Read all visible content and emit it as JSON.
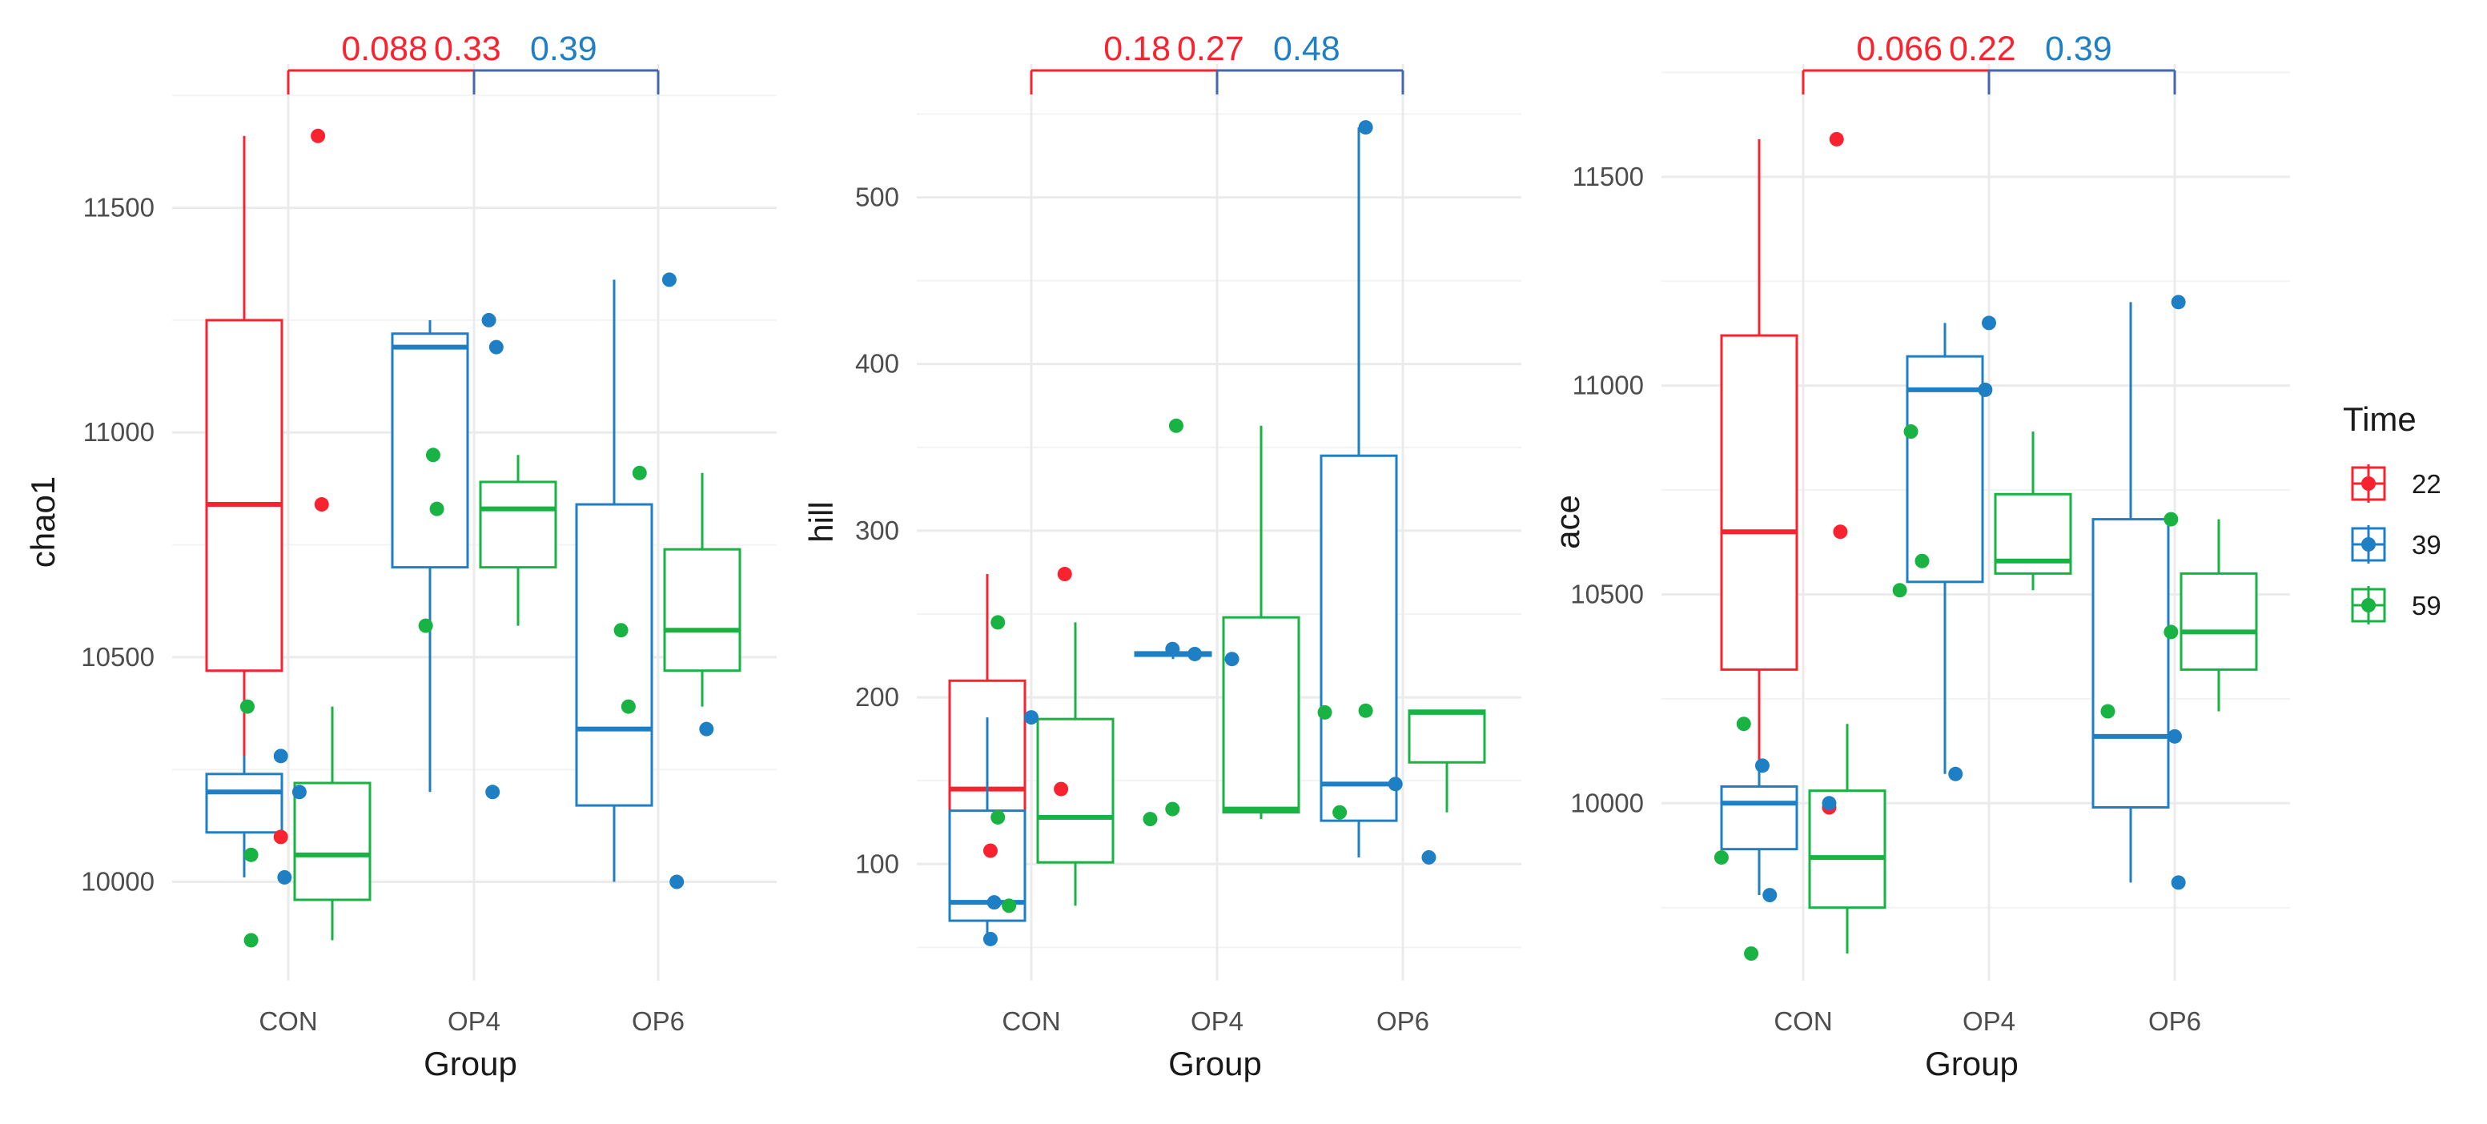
{
  "chart_data": [
    {
      "type": "boxplot",
      "ylabel": "chao1",
      "xlabel": "Group",
      "categories": [
        "CON",
        "OP4",
        "OP6"
      ],
      "ylim": [
        9780,
        11820
      ],
      "yticks": [
        10000,
        10500,
        11000,
        11500
      ],
      "boxes": [
        {
          "group": "CON",
          "time": "22",
          "min": 10100,
          "q1": 10470,
          "median": 10840,
          "q3": 11250,
          "max": 11660
        },
        {
          "group": "CON",
          "time": "39",
          "min": 10010,
          "q1": 10110,
          "median": 10200,
          "q3": 10240,
          "max": 10280
        },
        {
          "group": "CON",
          "time": "59",
          "min": 9870,
          "q1": 9960,
          "median": 10060,
          "q3": 10220,
          "max": 10390
        },
        {
          "group": "OP4",
          "time": "39",
          "min": 10200,
          "q1": 10700,
          "median": 11190,
          "q3": 11220,
          "max": 11250
        },
        {
          "group": "OP4",
          "time": "59",
          "min": 10570,
          "q1": 10700,
          "median": 10830,
          "q3": 10890,
          "max": 10950
        },
        {
          "group": "OP6",
          "time": "39",
          "min": 10000,
          "q1": 10170,
          "median": 10340,
          "q3": 10840,
          "max": 11340
        },
        {
          "group": "OP6",
          "time": "59",
          "min": 10390,
          "q1": 10470,
          "median": 10560,
          "q3": 10740,
          "max": 10910
        }
      ],
      "points": [
        {
          "group": "CON",
          "time": "22",
          "dx": 0.16,
          "y": 11660
        },
        {
          "group": "CON",
          "time": "22",
          "dx": 0.18,
          "y": 10840
        },
        {
          "group": "CON",
          "time": "22",
          "dx": -0.04,
          "y": 10100
        },
        {
          "group": "CON",
          "time": "39",
          "dx": -0.04,
          "y": 10280
        },
        {
          "group": "CON",
          "time": "39",
          "dx": 0.06,
          "y": 10200
        },
        {
          "group": "CON",
          "time": "39",
          "dx": -0.02,
          "y": 10010
        },
        {
          "group": "CON",
          "time": "59",
          "dx": -0.22,
          "y": 10390
        },
        {
          "group": "CON",
          "time": "59",
          "dx": -0.2,
          "y": 10060
        },
        {
          "group": "CON",
          "time": "59",
          "dx": -0.2,
          "y": 9870
        },
        {
          "group": "OP4",
          "time": "39",
          "dx": 0.08,
          "y": 11250
        },
        {
          "group": "OP4",
          "time": "39",
          "dx": 0.12,
          "y": 11190
        },
        {
          "group": "OP4",
          "time": "39",
          "dx": 0.1,
          "y": 10200
        },
        {
          "group": "OP4",
          "time": "59",
          "dx": -0.22,
          "y": 10950
        },
        {
          "group": "OP4",
          "time": "59",
          "dx": -0.2,
          "y": 10830
        },
        {
          "group": "OP4",
          "time": "59",
          "dx": -0.26,
          "y": 10570
        },
        {
          "group": "OP6",
          "time": "39",
          "dx": 0.06,
          "y": 11340
        },
        {
          "group": "OP6",
          "time": "39",
          "dx": 0.26,
          "y": 10340
        },
        {
          "group": "OP6",
          "time": "39",
          "dx": 0.1,
          "y": 10000
        },
        {
          "group": "OP6",
          "time": "59",
          "dx": -0.1,
          "y": 10910
        },
        {
          "group": "OP6",
          "time": "59",
          "dx": -0.2,
          "y": 10560
        },
        {
          "group": "OP6",
          "time": "59",
          "dx": -0.16,
          "y": 10390
        }
      ],
      "pvalues": [
        {
          "label": "0.088",
          "time": "22"
        },
        {
          "label": "0.33",
          "time": "22"
        },
        {
          "label": "0.39",
          "time": "39"
        }
      ]
    },
    {
      "type": "boxplot",
      "ylabel": "hill",
      "xlabel": "Group",
      "categories": [
        "CON",
        "OP4",
        "OP6"
      ],
      "ylim": [
        30,
        580
      ],
      "yticks": [
        100,
        200,
        300,
        400,
        500
      ],
      "boxes": [
        {
          "group": "CON",
          "time": "22",
          "min": 108,
          "q1": 126,
          "median": 145,
          "q3": 210,
          "max": 274
        },
        {
          "group": "CON",
          "time": "39",
          "min": 55,
          "q1": 66,
          "median": 77,
          "q3": 132,
          "max": 188
        },
        {
          "group": "CON",
          "time": "59",
          "min": 75,
          "q1": 101,
          "median": 128,
          "q3": 187,
          "max": 245
        },
        {
          "group": "OP4",
          "time": "39",
          "min": 223,
          "q1": 225,
          "median": 226,
          "q3": 227,
          "max": 229
        },
        {
          "group": "OP4",
          "time": "59",
          "min": 127,
          "q1": 131,
          "median": 133,
          "q3": 248,
          "max": 363
        },
        {
          "group": "OP6",
          "time": "39",
          "min": 104,
          "q1": 126,
          "median": 148,
          "q3": 345,
          "max": 542
        },
        {
          "group": "OP6",
          "time": "59",
          "min": 131,
          "q1": 161,
          "median": 191,
          "q3": 192,
          "max": 192
        }
      ],
      "points": [
        {
          "group": "CON",
          "time": "22",
          "dx": 0.18,
          "y": 274
        },
        {
          "group": "CON",
          "time": "22",
          "dx": 0.16,
          "y": 145
        },
        {
          "group": "CON",
          "time": "22",
          "dx": -0.22,
          "y": 108
        },
        {
          "group": "CON",
          "time": "39",
          "dx": 0.0,
          "y": 188
        },
        {
          "group": "CON",
          "time": "39",
          "dx": -0.2,
          "y": 77
        },
        {
          "group": "CON",
          "time": "39",
          "dx": -0.22,
          "y": 55
        },
        {
          "group": "CON",
          "time": "59",
          "dx": -0.18,
          "y": 245
        },
        {
          "group": "CON",
          "time": "59",
          "dx": -0.18,
          "y": 128
        },
        {
          "group": "CON",
          "time": "59",
          "dx": -0.12,
          "y": 75
        },
        {
          "group": "OP4",
          "time": "39",
          "dx": -0.24,
          "y": 229
        },
        {
          "group": "OP4",
          "time": "39",
          "dx": -0.12,
          "y": 226
        },
        {
          "group": "OP4",
          "time": "39",
          "dx": 0.08,
          "y": 223
        },
        {
          "group": "OP4",
          "time": "59",
          "dx": -0.22,
          "y": 363
        },
        {
          "group": "OP4",
          "time": "59",
          "dx": -0.24,
          "y": 133
        },
        {
          "group": "OP4",
          "time": "59",
          "dx": -0.36,
          "y": 127
        },
        {
          "group": "OP6",
          "time": "39",
          "dx": -0.2,
          "y": 542
        },
        {
          "group": "OP6",
          "time": "39",
          "dx": -0.04,
          "y": 148
        },
        {
          "group": "OP6",
          "time": "39",
          "dx": 0.14,
          "y": 104
        },
        {
          "group": "OP6",
          "time": "59",
          "dx": -0.42,
          "y": 191
        },
        {
          "group": "OP6",
          "time": "59",
          "dx": -0.2,
          "y": 192
        },
        {
          "group": "OP6",
          "time": "59",
          "dx": -0.34,
          "y": 131
        }
      ],
      "pvalues": [
        {
          "label": "0.18",
          "time": "22"
        },
        {
          "label": "0.27",
          "time": "22"
        },
        {
          "label": "0.48",
          "time": "39"
        }
      ]
    },
    {
      "type": "boxplot",
      "ylabel": "ace",
      "xlabel": "Group",
      "categories": [
        "CON",
        "OP4",
        "OP6"
      ],
      "ylim": [
        9575,
        11770
      ],
      "yticks": [
        10000,
        10500,
        11000,
        11500
      ],
      "boxes": [
        {
          "group": "CON",
          "time": "22",
          "min": 9990,
          "q1": 10320,
          "median": 10650,
          "q3": 11120,
          "max": 11590
        },
        {
          "group": "CON",
          "time": "39",
          "min": 9780,
          "q1": 9890,
          "median": 10000,
          "q3": 10040,
          "max": 10090
        },
        {
          "group": "CON",
          "time": "59",
          "min": 9640,
          "q1": 9750,
          "median": 9870,
          "q3": 10030,
          "max": 10190
        },
        {
          "group": "OP4",
          "time": "39",
          "min": 10070,
          "q1": 10530,
          "median": 10990,
          "q3": 11070,
          "max": 11150
        },
        {
          "group": "OP4",
          "time": "59",
          "min": 10510,
          "q1": 10550,
          "median": 10580,
          "q3": 10740,
          "max": 10890
        },
        {
          "group": "OP6",
          "time": "39",
          "min": 9810,
          "q1": 9990,
          "median": 10160,
          "q3": 10680,
          "max": 11200
        },
        {
          "group": "OP6",
          "time": "59",
          "min": 10220,
          "q1": 10320,
          "median": 10410,
          "q3": 10550,
          "max": 10680
        }
      ],
      "points": [
        {
          "group": "CON",
          "time": "22",
          "dx": 0.18,
          "y": 11590
        },
        {
          "group": "CON",
          "time": "22",
          "dx": 0.2,
          "y": 10650
        },
        {
          "group": "CON",
          "time": "22",
          "dx": 0.14,
          "y": 9990
        },
        {
          "group": "CON",
          "time": "39",
          "dx": -0.22,
          "y": 10090
        },
        {
          "group": "CON",
          "time": "39",
          "dx": 0.14,
          "y": 10000
        },
        {
          "group": "CON",
          "time": "39",
          "dx": -0.18,
          "y": 9780
        },
        {
          "group": "CON",
          "time": "59",
          "dx": -0.32,
          "y": 10190
        },
        {
          "group": "CON",
          "time": "59",
          "dx": -0.44,
          "y": 9870
        },
        {
          "group": "CON",
          "time": "59",
          "dx": -0.28,
          "y": 9640
        },
        {
          "group": "OP4",
          "time": "39",
          "dx": 0.0,
          "y": 11150
        },
        {
          "group": "OP4",
          "time": "39",
          "dx": -0.02,
          "y": 10990
        },
        {
          "group": "OP4",
          "time": "39",
          "dx": -0.18,
          "y": 10070
        },
        {
          "group": "OP4",
          "time": "59",
          "dx": -0.42,
          "y": 10890
        },
        {
          "group": "OP4",
          "time": "59",
          "dx": -0.36,
          "y": 10580
        },
        {
          "group": "OP4",
          "time": "59",
          "dx": -0.48,
          "y": 10510
        },
        {
          "group": "OP6",
          "time": "39",
          "dx": 0.02,
          "y": 11200
        },
        {
          "group": "OP6",
          "time": "39",
          "dx": 0.0,
          "y": 10160
        },
        {
          "group": "OP6",
          "time": "39",
          "dx": 0.02,
          "y": 9810
        },
        {
          "group": "OP6",
          "time": "59",
          "dx": -0.02,
          "y": 10680
        },
        {
          "group": "OP6",
          "time": "59",
          "dx": -0.02,
          "y": 10410
        },
        {
          "group": "OP6",
          "time": "59",
          "dx": -0.36,
          "y": 10220
        }
      ],
      "pvalues": [
        {
          "label": "0.066",
          "time": "22"
        },
        {
          "label": "0.22",
          "time": "22"
        },
        {
          "label": "0.39",
          "time": "39"
        }
      ]
    }
  ],
  "legend": {
    "title": "Time",
    "items": [
      {
        "label": "22",
        "color": "#f8232e"
      },
      {
        "label": "39",
        "color": "#1f7fc4"
      },
      {
        "label": "59",
        "color": "#18b343"
      }
    ]
  },
  "colors": {
    "22": "#f8232e",
    "39": "#1f7fc4",
    "59": "#18b343",
    "grid": "#ebebeb",
    "bracket_right": "#4466aa"
  }
}
